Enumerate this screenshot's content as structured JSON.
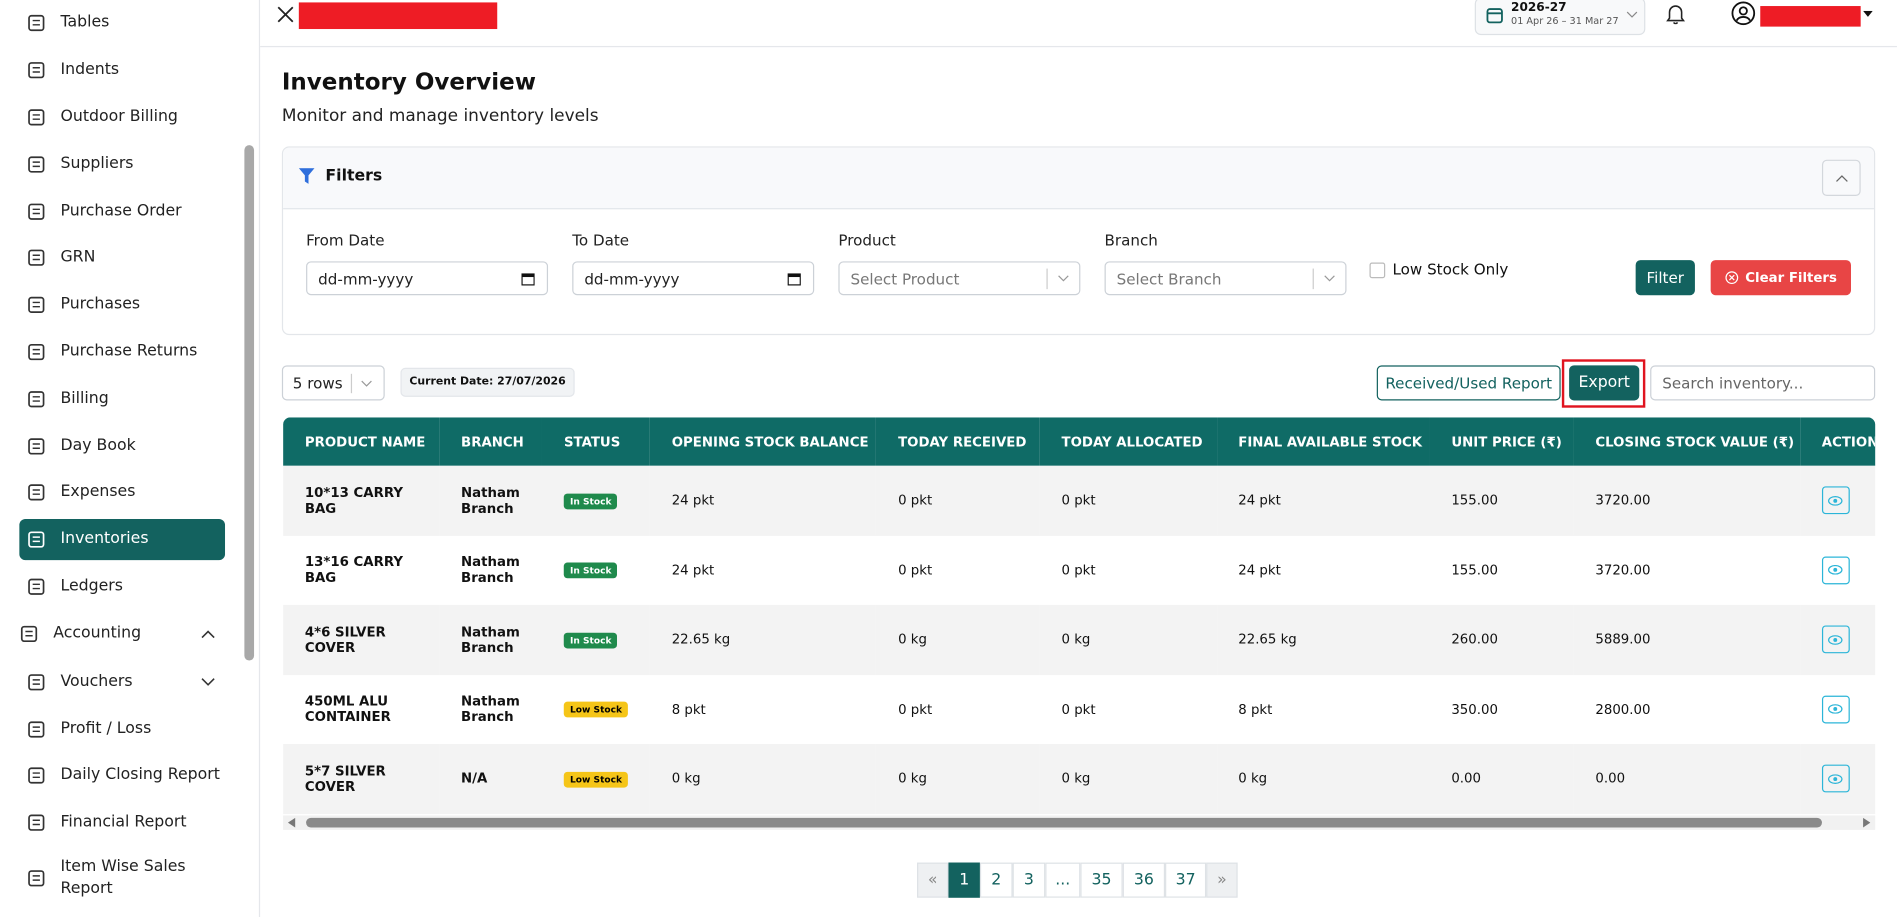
{
  "sidebar": {
    "items": [
      {
        "label": "Tables"
      },
      {
        "label": "Indents"
      },
      {
        "label": "Outdoor Billing"
      },
      {
        "label": "Suppliers"
      },
      {
        "label": "Purchase Order"
      },
      {
        "label": "GRN"
      },
      {
        "label": "Purchases"
      },
      {
        "label": "Purchase Returns"
      },
      {
        "label": "Billing"
      },
      {
        "label": "Day Book"
      },
      {
        "label": "Expenses"
      },
      {
        "label": "Inventories",
        "active": true
      },
      {
        "label": "Ledgers"
      }
    ],
    "group": {
      "label": "Accounting"
    },
    "sub_items": [
      {
        "label": "Vouchers",
        "expandable": true
      },
      {
        "label": "Profit / Loss"
      },
      {
        "label": "Daily Closing Report"
      },
      {
        "label": "Financial Report"
      },
      {
        "label": "Item Wise Sales Report"
      }
    ]
  },
  "header": {
    "fy": "2026-27",
    "fy_range": "01 Apr 26 – 31 Mar 27"
  },
  "page": {
    "title": "Inventory Overview",
    "subtitle": "Monitor and manage inventory levels"
  },
  "filters": {
    "title": "Filters",
    "from_label": "From Date",
    "from_placeholder": "dd-mm-yyyy",
    "to_label": "To Date",
    "to_placeholder": "dd-mm-yyyy",
    "product_label": "Product",
    "product_placeholder": "Select Product",
    "branch_label": "Branch",
    "branch_placeholder": "Select Branch",
    "low_stock": "Low Stock Only",
    "filter_button": "Filter",
    "clear_button": "Clear Filters"
  },
  "toolbar": {
    "rows": "5 rows",
    "current_date": "Current Date: 27/07/2026",
    "report_button": "Received/Used Report",
    "export_button": "Export",
    "search_placeholder": "Search inventory..."
  },
  "table": {
    "headers": [
      "PRODUCT NAME",
      "BRANCH",
      "STATUS",
      "OPENING STOCK BALANCE",
      "TODAY RECEIVED",
      "TODAY ALLOCATED",
      "FINAL AVAILABLE STOCK",
      "UNIT PRICE (₹)",
      "CLOSING STOCK VALUE (₹)",
      "ACTIONS"
    ],
    "rows": [
      {
        "cells": [
          "10*13 CARRY BAG",
          "Natham Branch",
          "In Stock",
          "24 pkt",
          "0 pkt",
          "0 pkt",
          "24 pkt",
          "155.00",
          "3720.00"
        ],
        "status_color": "#1f8a4c",
        "status_text_color": "#ffffff"
      },
      {
        "cells": [
          "13*16 CARRY BAG",
          "Natham Branch",
          "In Stock",
          "24 pkt",
          "0 pkt",
          "0 pkt",
          "24 pkt",
          "155.00",
          "3720.00"
        ],
        "status_color": "#1f8a4c",
        "status_text_color": "#ffffff"
      },
      {
        "cells": [
          "4*6 SILVER COVER",
          "Natham Branch",
          "In Stock",
          "22.65 kg",
          "0 kg",
          "0 kg",
          "22.65 kg",
          "260.00",
          "5889.00"
        ],
        "status_color": "#1f8a4c",
        "status_text_color": "#ffffff"
      },
      {
        "cells": [
          "450ML ALU CONTAINER",
          "Natham Branch",
          "Low Stock",
          "8 pkt",
          "0 pkt",
          "0 pkt",
          "8 pkt",
          "350.00",
          "2800.00"
        ],
        "status_color": "#f5c518",
        "status_text_color": "#000000"
      },
      {
        "cells": [
          "5*7 SILVER COVER",
          "N/A",
          "Low Stock",
          "0 kg",
          "0 kg",
          "0 kg",
          "0 kg",
          "0.00",
          "0.00"
        ],
        "status_color": "#f5c518",
        "status_text_color": "#000000"
      }
    ]
  },
  "pagination": {
    "prev": "«",
    "pages": [
      "1",
      "2",
      "3",
      "...",
      "35",
      "36",
      "37"
    ],
    "current": 0,
    "next": "»"
  }
}
